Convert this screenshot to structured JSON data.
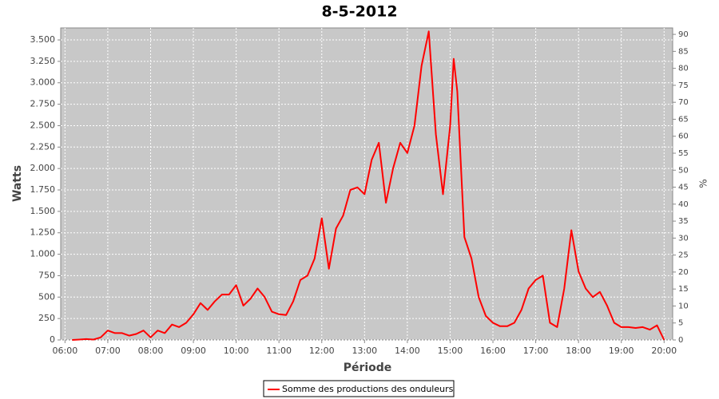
{
  "chart_data": {
    "type": "line",
    "title": "8-5-2012",
    "x_label": "Période",
    "y_label": "Watts",
    "y2_label": "%",
    "x": [
      "06:10",
      "06:20",
      "06:30",
      "06:40",
      "06:50",
      "07:00",
      "07:10",
      "07:20",
      "07:30",
      "07:40",
      "07:50",
      "08:00",
      "08:10",
      "08:20",
      "08:30",
      "08:40",
      "08:50",
      "09:00",
      "09:10",
      "09:20",
      "09:30",
      "09:40",
      "09:50",
      "10:00",
      "10:10",
      "10:20",
      "10:30",
      "10:40",
      "10:50",
      "11:00",
      "11:10",
      "11:20",
      "11:30",
      "11:40",
      "11:50",
      "12:00",
      "12:10",
      "12:20",
      "12:30",
      "12:40",
      "12:50",
      "13:00",
      "13:10",
      "13:20",
      "13:30",
      "13:40",
      "13:50",
      "14:00",
      "14:10",
      "14:20",
      "14:30",
      "14:40",
      "14:50",
      "15:00",
      "15:05",
      "15:10",
      "15:20",
      "15:30",
      "15:40",
      "15:50",
      "16:00",
      "16:10",
      "16:20",
      "16:30",
      "16:40",
      "16:50",
      "17:00",
      "17:10",
      "17:20",
      "17:30",
      "17:40",
      "17:50",
      "18:00",
      "18:10",
      "18:20",
      "18:30",
      "18:40",
      "18:50",
      "19:00",
      "19:10",
      "19:20",
      "19:30",
      "19:40",
      "19:50",
      "20:00"
    ],
    "series": [
      {
        "name": "Somme des productions des onduleurs",
        "color": "#ff0000",
        "values": [
          0,
          5,
          10,
          5,
          30,
          110,
          80,
          80,
          50,
          70,
          110,
          30,
          110,
          80,
          180,
          150,
          200,
          300,
          430,
          350,
          450,
          530,
          530,
          640,
          400,
          480,
          600,
          500,
          330,
          300,
          290,
          450,
          700,
          750,
          950,
          1420,
          830,
          1300,
          1450,
          1750,
          1780,
          1700,
          2100,
          2300,
          1600,
          2000,
          2300,
          2180,
          2500,
          3200,
          3600,
          2400,
          1700,
          2500,
          3280,
          2900,
          1200,
          950,
          500,
          280,
          200,
          160,
          160,
          200,
          350,
          600,
          700,
          750,
          200,
          150,
          600,
          1280,
          800,
          600,
          500,
          560,
          400,
          200,
          150,
          150,
          140,
          150,
          120,
          170,
          0
        ]
      }
    ],
    "xlim": [
      "05:54",
      "20:12"
    ],
    "xticks": [
      "06:00",
      "07:00",
      "08:00",
      "09:00",
      "10:00",
      "11:00",
      "12:00",
      "13:00",
      "14:00",
      "15:00",
      "16:00",
      "17:00",
      "18:00",
      "19:00",
      "20:00"
    ],
    "ylim": [
      0,
      3640
    ],
    "yticks": [
      0,
      250,
      500,
      750,
      {
        "value": 1000,
        "label": "1.000"
      },
      {
        "value": 1250,
        "label": "1.250"
      },
      {
        "value": 1500,
        "label": "1.500"
      },
      {
        "value": 1750,
        "label": "1.750"
      },
      {
        "value": 2000,
        "label": "2.000"
      },
      {
        "value": 2250,
        "label": "2.250"
      },
      {
        "value": 2500,
        "label": "2.500"
      },
      {
        "value": 2750,
        "label": "2.750"
      },
      {
        "value": 3000,
        "label": "3.000"
      },
      {
        "value": 3250,
        "label": "3.250"
      },
      {
        "value": 3500,
        "label": "3.500"
      }
    ],
    "y2lim": [
      0,
      91.9
    ],
    "y2ticks": [
      0,
      5,
      10,
      15,
      20,
      25,
      30,
      35,
      40,
      45,
      50,
      55,
      60,
      65,
      70,
      75,
      80,
      85,
      90
    ],
    "grid": true,
    "legend": "bottom"
  }
}
